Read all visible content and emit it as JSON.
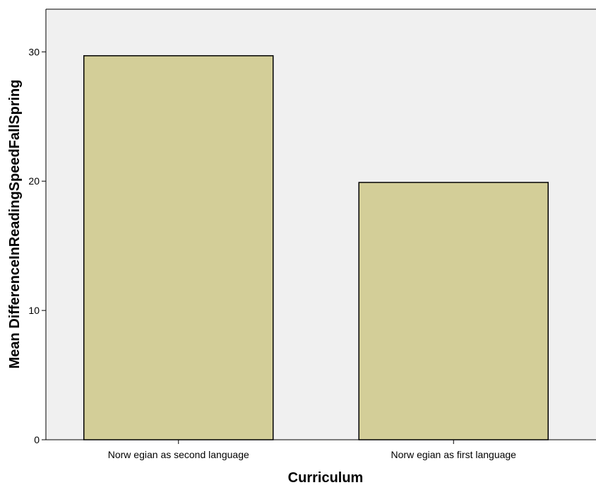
{
  "chart_data": {
    "type": "bar",
    "title": "",
    "xlabel": "Curriculum",
    "ylabel": "Mean DifferenceInReadingSpeedFallSpring",
    "categories": [
      "Norw egian as second language",
      "Norw egian as first language"
    ],
    "values": [
      29.7,
      19.9
    ],
    "ylim": [
      0,
      33.3
    ],
    "yticks": [
      0,
      10,
      20,
      30
    ],
    "grid": false,
    "legend": "none",
    "colors": {
      "bar_fill": "#d3ce98",
      "bar_stroke": "#000000",
      "plot_background": "#f0f0f0"
    }
  }
}
